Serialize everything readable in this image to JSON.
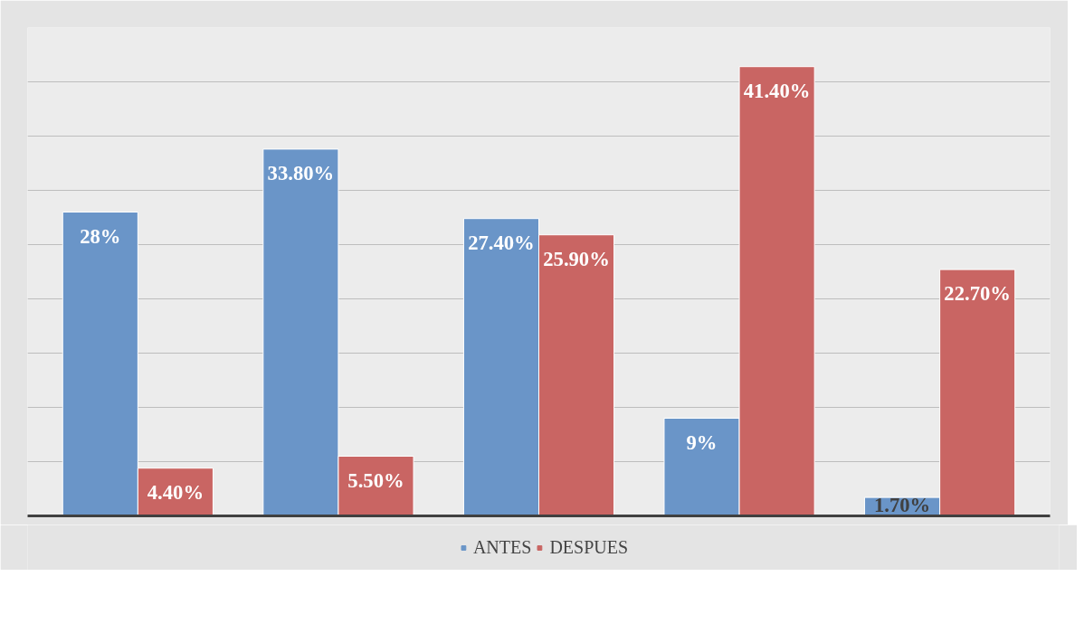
{
  "chart_data": {
    "type": "bar",
    "categories": [
      null,
      null,
      null,
      null,
      null
    ],
    "series": [
      {
        "name": "ANTES",
        "color": "#6a95c8",
        "values": [
          28,
          33.8,
          27.4,
          9,
          1.7
        ],
        "value_labels": [
          "28%",
          "33.80%",
          "27.40%",
          "9%",
          "1.70%"
        ]
      },
      {
        "name": "DESPUES",
        "color": "#c96563",
        "values": [
          4.4,
          5.5,
          25.9,
          41.4,
          22.7
        ],
        "value_labels": [
          "4.40%",
          "5.50%",
          "25.90%",
          "41.40%",
          "22.70%"
        ]
      }
    ],
    "ylim": [
      0,
      45
    ],
    "yticks": [
      0,
      5,
      10,
      15,
      20,
      25,
      30,
      35,
      40,
      45
    ],
    "tick_labels": false,
    "grid": "y",
    "legend": "bottom"
  }
}
